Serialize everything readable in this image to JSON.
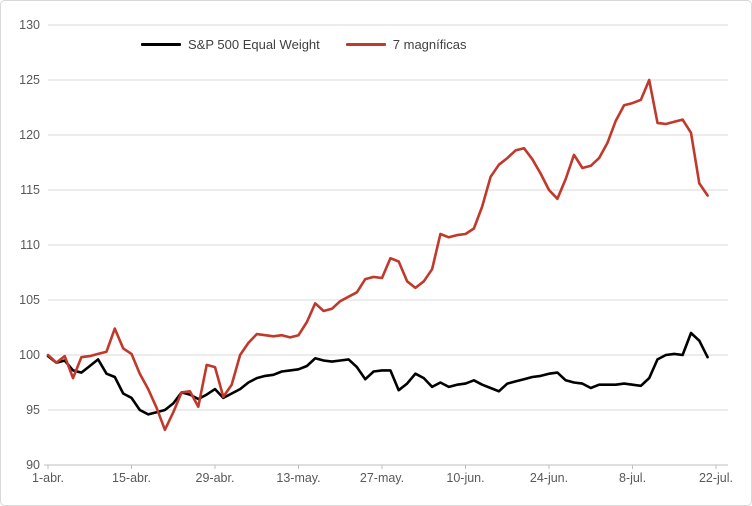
{
  "chart_data": {
    "type": "line",
    "title": "",
    "xlabel": "",
    "ylabel": "",
    "grid": "horizontal",
    "legend_position": "top-center",
    "ylim": [
      90,
      130
    ],
    "y_ticks": [
      90,
      95,
      100,
      105,
      110,
      115,
      120,
      125,
      130
    ],
    "x_tick_labels": [
      "1-abr.",
      "15-abr.",
      "29-abr.",
      "13-may.",
      "27-may.",
      "10-jun.",
      "24-jun.",
      "8-jul.",
      "22-jul."
    ],
    "x_index_count": 80,
    "x_indices_per_tick": 10,
    "colors": {
      "grid": "#d9d9d9",
      "axis": "#bfbfbf",
      "tick_label": "#595959",
      "legend_text": "#404040"
    },
    "series": [
      {
        "name": "S&P 500 Equal Weight",
        "color": "#000000",
        "values": [
          99.9,
          99.3,
          99.5,
          98.6,
          98.4,
          99.0,
          99.6,
          98.3,
          98.0,
          96.5,
          96.1,
          95.0,
          94.6,
          94.8,
          95.0,
          95.6,
          96.6,
          96.4,
          96.0,
          96.4,
          96.9,
          96.1,
          96.5,
          96.9,
          97.5,
          97.9,
          98.1,
          98.2,
          98.5,
          98.6,
          98.7,
          99.0,
          99.7,
          99.5,
          99.4,
          99.5,
          99.6,
          98.9,
          97.8,
          98.5,
          98.6,
          98.6,
          96.8,
          97.4,
          98.3,
          97.9,
          97.1,
          97.5,
          97.1,
          97.3,
          97.4,
          97.7,
          97.3,
          97.0,
          96.7,
          97.4,
          97.6,
          97.8,
          98.0,
          98.1,
          98.3,
          98.4,
          97.7,
          97.5,
          97.4,
          97.0,
          97.3,
          97.3,
          97.3,
          97.4,
          97.3,
          97.2,
          97.9,
          99.6,
          100.0,
          100.1,
          100.0,
          102.0,
          101.3,
          99.8
        ]
      },
      {
        "name": "7 magníficas",
        "color": "#c0392b",
        "values": [
          100.0,
          99.3,
          99.9,
          97.9,
          99.8,
          99.9,
          100.1,
          100.3,
          102.4,
          100.6,
          100.1,
          98.3,
          96.9,
          95.2,
          93.2,
          94.8,
          96.6,
          96.7,
          95.3,
          99.1,
          98.9,
          96.2,
          97.3,
          100.0,
          101.1,
          101.9,
          101.8,
          101.7,
          101.8,
          101.6,
          101.8,
          103.0,
          104.7,
          104.0,
          104.2,
          104.9,
          105.3,
          105.7,
          106.9,
          107.1,
          107.0,
          108.8,
          108.5,
          106.7,
          106.1,
          106.7,
          107.8,
          111.0,
          110.7,
          110.9,
          111.0,
          111.5,
          113.5,
          116.2,
          117.3,
          117.9,
          118.6,
          118.8,
          117.8,
          116.5,
          115.0,
          114.2,
          116.0,
          118.2,
          117.0,
          117.2,
          117.9,
          119.3,
          121.3,
          122.7,
          122.9,
          123.2,
          125.0,
          121.1,
          121.0,
          121.2,
          121.4,
          120.2,
          115.6,
          114.5
        ]
      }
    ]
  }
}
